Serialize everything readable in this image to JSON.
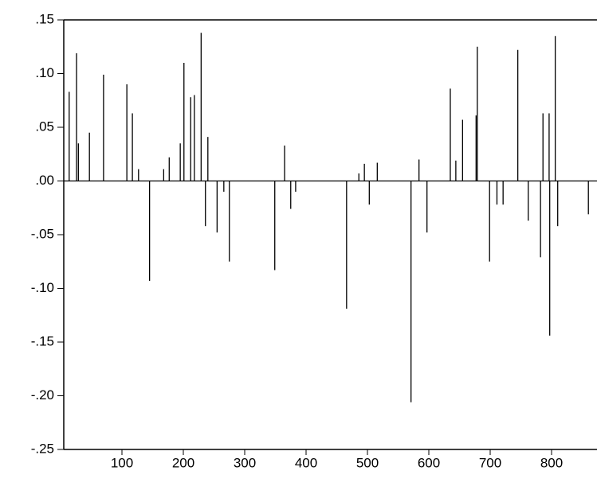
{
  "chart_data": {
    "type": "spike",
    "color": "#000000",
    "x": [
      14,
      26,
      29,
      47,
      70,
      108,
      117,
      127,
      145,
      168,
      177,
      195,
      201,
      212,
      218,
      229,
      236,
      240,
      255,
      266,
      275,
      349,
      365,
      375,
      383,
      466,
      486,
      495,
      503,
      516,
      571,
      584,
      597,
      635,
      644,
      655,
      677,
      679,
      699,
      711,
      721,
      745,
      762,
      782,
      786,
      796,
      797,
      806,
      810,
      860
    ],
    "values": [
      0.083,
      0.119,
      0.035,
      0.045,
      0.099,
      0.09,
      0.063,
      0.011,
      -0.093,
      0.011,
      0.022,
      0.035,
      0.11,
      0.078,
      0.08,
      0.138,
      -0.042,
      0.041,
      -0.048,
      -0.01,
      -0.075,
      -0.083,
      0.033,
      -0.026,
      -0.01,
      -0.119,
      0.007,
      0.016,
      -0.022,
      0.017,
      -0.206,
      0.02,
      -0.048,
      0.086,
      0.019,
      0.057,
      0.061,
      0.125,
      -0.075,
      -0.022,
      -0.022,
      0.122,
      -0.037,
      -0.071,
      0.063,
      0.063,
      -0.144,
      0.135,
      -0.042,
      -0.031
    ],
    "xlim": [
      0,
      874
    ],
    "xticks": [
      100,
      200,
      300,
      400,
      500,
      600,
      700,
      800
    ],
    "ylim": [
      -0.25,
      0.15
    ],
    "yticks": [
      {
        "value": -0.25,
        "label": "-.25"
      },
      {
        "value": -0.2,
        "label": "-.20"
      },
      {
        "value": -0.15,
        "label": "-.15"
      },
      {
        "value": -0.1,
        "label": "-.10"
      },
      {
        "value": -0.05,
        "label": "-.05"
      },
      {
        "value": 0,
        "label": ".00"
      },
      {
        "value": 0.05,
        "label": ".05"
      },
      {
        "value": 0.1,
        "label": ".10"
      },
      {
        "value": 0.15,
        "label": ".15"
      }
    ]
  }
}
